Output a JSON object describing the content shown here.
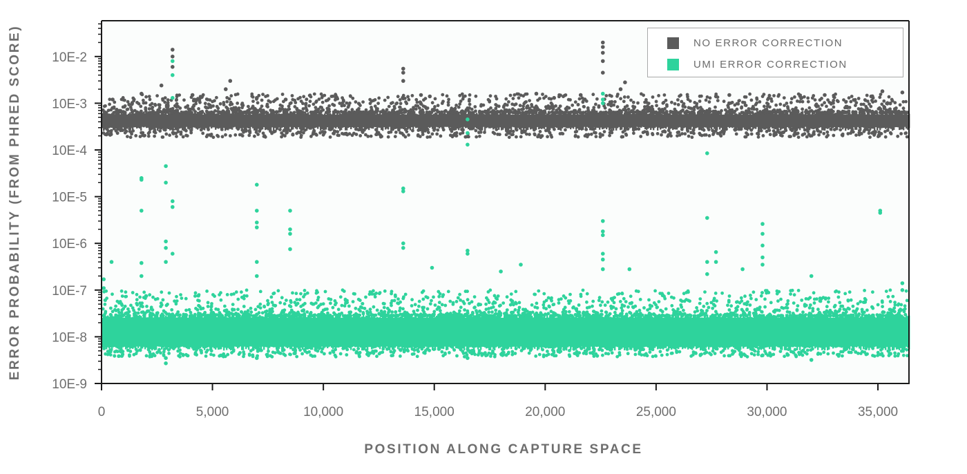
{
  "chart_data": {
    "type": "scatter",
    "title": "",
    "xlabel": "POSITION ALONG CAPTURE SPACE",
    "ylabel": "ERROR PROBABILITY (FROM PHRED SCORE)",
    "xlim": [
      0,
      36400
    ],
    "ylim_log10": [
      -9,
      -1.3
    ],
    "y_scale": "log",
    "grid": false,
    "legend_position": "upper right",
    "x_ticks": [
      {
        "value": 0,
        "label": "0"
      },
      {
        "value": 5000,
        "label": "5,000"
      },
      {
        "value": 10000,
        "label": "10,000"
      },
      {
        "value": 15000,
        "label": "15,000"
      },
      {
        "value": 20000,
        "label": "20,000"
      },
      {
        "value": 25000,
        "label": "25,000"
      },
      {
        "value": 30000,
        "label": "30,000"
      },
      {
        "value": 35000,
        "label": "35,000"
      }
    ],
    "y_ticks": [
      {
        "exp": -2,
        "label": "10E-2"
      },
      {
        "exp": -3,
        "label": "10E-3"
      },
      {
        "exp": -4,
        "label": "10E-4"
      },
      {
        "exp": -5,
        "label": "10E-5"
      },
      {
        "exp": -6,
        "label": "10E-6"
      },
      {
        "exp": -7,
        "label": "10E-7"
      },
      {
        "exp": -8,
        "label": "10E-8"
      },
      {
        "exp": -9,
        "label": "10E-9"
      }
    ],
    "series": [
      {
        "name": "NO ERROR CORRECTION",
        "color": "#5b5b5b",
        "band": {
          "typical_log10_min": -3.55,
          "typical_log10_max": -3.2,
          "sparse_up_to_log10": -2.8
        },
        "outliers": [
          {
            "x": 500,
            "y": 0.0012
          },
          {
            "x": 1800,
            "y": 0.0016
          },
          {
            "x": 2700,
            "y": 0.0024
          },
          {
            "x": 3200,
            "y": 0.014
          },
          {
            "x": 3200,
            "y": 0.01
          },
          {
            "x": 3200,
            "y": 0.006
          },
          {
            "x": 4100,
            "y": 0.0015
          },
          {
            "x": 5800,
            "y": 0.003
          },
          {
            "x": 5600,
            "y": 0.002
          },
          {
            "x": 7000,
            "y": 0.0013
          },
          {
            "x": 8300,
            "y": 0.0012
          },
          {
            "x": 13600,
            "y": 0.0055
          },
          {
            "x": 13600,
            "y": 0.0045
          },
          {
            "x": 13600,
            "y": 0.003
          },
          {
            "x": 14400,
            "y": 0.0015
          },
          {
            "x": 14800,
            "y": 0.0014
          },
          {
            "x": 19600,
            "y": 0.0016
          },
          {
            "x": 20400,
            "y": 0.0013
          },
          {
            "x": 21600,
            "y": 0.0015
          },
          {
            "x": 22600,
            "y": 0.02
          },
          {
            "x": 22600,
            "y": 0.016
          },
          {
            "x": 22600,
            "y": 0.012
          },
          {
            "x": 22600,
            "y": 0.008
          },
          {
            "x": 22600,
            "y": 0.0045
          },
          {
            "x": 23600,
            "y": 0.0028
          },
          {
            "x": 23400,
            "y": 0.002
          },
          {
            "x": 27700,
            "y": 0.0014
          },
          {
            "x": 28300,
            "y": 0.0015
          },
          {
            "x": 32600,
            "y": 0.0015
          },
          {
            "x": 34700,
            "y": 0.0014
          },
          {
            "x": 35200,
            "y": 0.0018
          },
          {
            "x": 36100,
            "y": 0.0017
          }
        ]
      },
      {
        "name": "UMI ERROR CORRECTION",
        "color": "#2ed39c",
        "band": {
          "typical_log10_min": -8.25,
          "typical_log10_max": -7.55,
          "sparse_up_to_log10": -7.0
        },
        "outliers": [
          {
            "x": 100,
            "y": 1.7e-07
          },
          {
            "x": 100,
            "y": 1.1e-07
          },
          {
            "x": 450,
            "y": 4e-07
          },
          {
            "x": 1800,
            "y": 2.5e-05
          },
          {
            "x": 1800,
            "y": 2.3e-05
          },
          {
            "x": 1800,
            "y": 5e-06
          },
          {
            "x": 1800,
            "y": 3.8e-07
          },
          {
            "x": 1800,
            "y": 2e-07
          },
          {
            "x": 2900,
            "y": 4.5e-05
          },
          {
            "x": 2900,
            "y": 2e-05
          },
          {
            "x": 2900,
            "y": 1.1e-06
          },
          {
            "x": 2900,
            "y": 8e-07
          },
          {
            "x": 2900,
            "y": 4e-07
          },
          {
            "x": 3200,
            "y": 0.008
          },
          {
            "x": 3200,
            "y": 0.004
          },
          {
            "x": 3200,
            "y": 0.0013
          },
          {
            "x": 3200,
            "y": 8e-06
          },
          {
            "x": 3200,
            "y": 6e-06
          },
          {
            "x": 3200,
            "y": 6e-07
          },
          {
            "x": 2900,
            "y": 2.7e-09
          },
          {
            "x": 2900,
            "y": 3.5e-09
          },
          {
            "x": 7000,
            "y": 1.8e-05
          },
          {
            "x": 7000,
            "y": 5e-06
          },
          {
            "x": 7000,
            "y": 2.8e-06
          },
          {
            "x": 7000,
            "y": 2.2e-06
          },
          {
            "x": 7000,
            "y": 4e-07
          },
          {
            "x": 7000,
            "y": 2e-07
          },
          {
            "x": 7000,
            "y": 3.5e-09
          },
          {
            "x": 8500,
            "y": 5e-06
          },
          {
            "x": 8500,
            "y": 2e-06
          },
          {
            "x": 8500,
            "y": 1.6e-06
          },
          {
            "x": 8500,
            "y": 7.5e-07
          },
          {
            "x": 13600,
            "y": 1.5e-05
          },
          {
            "x": 13600,
            "y": 1.3e-05
          },
          {
            "x": 13600,
            "y": 1e-06
          },
          {
            "x": 13600,
            "y": 8e-07
          },
          {
            "x": 14900,
            "y": 3e-07
          },
          {
            "x": 16500,
            "y": 0.00045
          },
          {
            "x": 16500,
            "y": 0.00023
          },
          {
            "x": 16500,
            "y": 0.00013
          },
          {
            "x": 16500,
            "y": 7e-07
          },
          {
            "x": 16500,
            "y": 6e-07
          },
          {
            "x": 16500,
            "y": 3.5e-09
          },
          {
            "x": 18000,
            "y": 2.5e-07
          },
          {
            "x": 18900,
            "y": 3.5e-07
          },
          {
            "x": 22600,
            "y": 0.0016
          },
          {
            "x": 22600,
            "y": 0.0012
          },
          {
            "x": 22600,
            "y": 0.001
          },
          {
            "x": 22600,
            "y": 3e-06
          },
          {
            "x": 22600,
            "y": 1.8e-06
          },
          {
            "x": 22600,
            "y": 1.5e-06
          },
          {
            "x": 22600,
            "y": 6e-07
          },
          {
            "x": 22600,
            "y": 4.5e-07
          },
          {
            "x": 22600,
            "y": 2.8e-07
          },
          {
            "x": 23800,
            "y": 2.8e-07
          },
          {
            "x": 27300,
            "y": 8.5e-05
          },
          {
            "x": 27300,
            "y": 3.5e-06
          },
          {
            "x": 27300,
            "y": 4e-07
          },
          {
            "x": 27300,
            "y": 2.2e-07
          },
          {
            "x": 27700,
            "y": 6.5e-07
          },
          {
            "x": 27700,
            "y": 4e-07
          },
          {
            "x": 28900,
            "y": 2.8e-07
          },
          {
            "x": 29800,
            "y": 2.6e-06
          },
          {
            "x": 29800,
            "y": 1.6e-06
          },
          {
            "x": 29800,
            "y": 9e-07
          },
          {
            "x": 29800,
            "y": 5e-07
          },
          {
            "x": 29800,
            "y": 3.5e-07
          },
          {
            "x": 29800,
            "y": 4e-09
          },
          {
            "x": 32000,
            "y": 2e-07
          },
          {
            "x": 32000,
            "y": 3.2e-09
          },
          {
            "x": 35100,
            "y": 5e-06
          },
          {
            "x": 35100,
            "y": 4.5e-06
          },
          {
            "x": 36100,
            "y": 1.4e-07
          },
          {
            "x": 36100,
            "y": 1e-07
          }
        ]
      }
    ]
  },
  "legend": {
    "items": [
      {
        "label": "NO ERROR CORRECTION",
        "color": "#5b5b5b"
      },
      {
        "label": "UMI ERROR CORRECTION",
        "color": "#2ed39c"
      }
    ]
  },
  "axes": {
    "x_title": "POSITION ALONG CAPTURE SPACE",
    "y_title": "ERROR PROBABILITY (FROM PHRED SCORE)"
  }
}
